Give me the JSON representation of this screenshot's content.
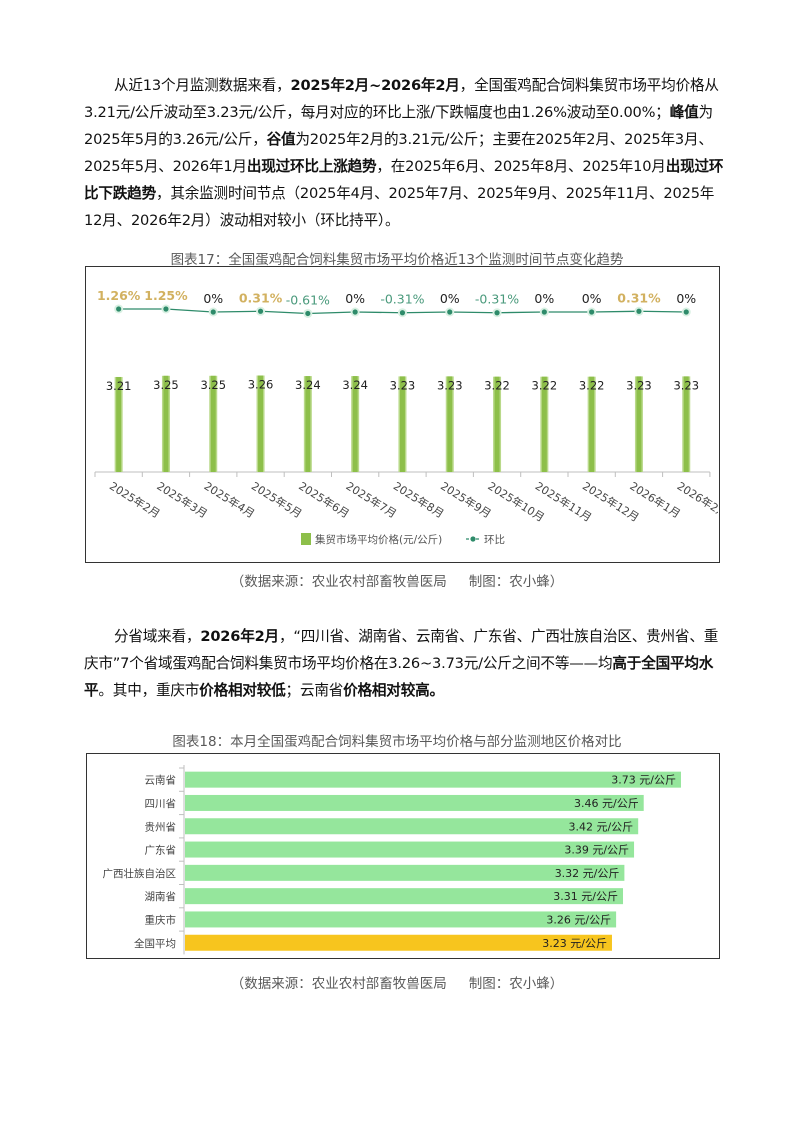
{
  "paragraph1": [
    {
      "t": "从近13个月监测数据来看，",
      "b": false
    },
    {
      "t": "2025年2月~2026年2月",
      "b": true
    },
    {
      "t": "，全国蛋鸡配合饲料集贸市场平均价格从3.21元/公斤波动至3.23元/公斤，每月对应的环比上涨/下跌幅度也由1.26%波动至0.00%；",
      "b": false
    },
    {
      "t": "峰值",
      "b": true
    },
    {
      "t": "为2025年5月的3.26元/公斤，",
      "b": false
    },
    {
      "t": "谷值",
      "b": true
    },
    {
      "t": "为2025年2月的3.21元/公斤；主要在2025年2月、2025年3月、2025年5月、2026年1月",
      "b": false
    },
    {
      "t": "出现过环比上涨趋势",
      "b": true
    },
    {
      "t": "，在2025年6月、2025年8月、2025年10月",
      "b": false
    },
    {
      "t": "出现过环比下跌趋势",
      "b": true
    },
    {
      "t": "，其余监测时间节点（2025年4月、2025年7月、2025年9月、2025年11月、2025年12月、2026年2月）波动相对较小（环比持平）。",
      "b": false
    }
  ],
  "paragraph2": [
    {
      "t": "分省域来看，",
      "b": false
    },
    {
      "t": "2026年2月",
      "b": true
    },
    {
      "t": "，“四川省、湖南省、云南省、广东省、广西壮族自治区、贵州省、重庆市”7个省域蛋鸡配合饲料集贸市场平均价格在3.26~3.73元/公斤之间不等——均",
      "b": false
    },
    {
      "t": "高于全国平均水平",
      "b": true
    },
    {
      "t": "。其中，重庆市",
      "b": false
    },
    {
      "t": "价格相对较低",
      "b": true
    },
    {
      "t": "；云南省",
      "b": false
    },
    {
      "t": "价格相对较高。",
      "b": true
    }
  ],
  "source": {
    "data_source": "（数据来源：农业农村部畜牧兽医局",
    "made_by": "制图：农小蜂）"
  },
  "chart_data": [
    {
      "type": "bar+line",
      "title": "图表17：全国蛋鸡配合饲料集贸市场平均价格近13个监测时间节点变化趋势",
      "categories": [
        "2025年2月",
        "2025年3月",
        "2025年4月",
        "2025年5月",
        "2025年6月",
        "2025年7月",
        "2025年8月",
        "2025年9月",
        "2025年10月",
        "2025年11月",
        "2025年12月",
        "2026年1月",
        "2026年2月"
      ],
      "series": [
        {
          "name": "集贸市场平均价格(元/公斤)",
          "type": "bar",
          "values": [
            3.21,
            3.25,
            3.25,
            3.26,
            3.24,
            3.24,
            3.23,
            3.23,
            3.22,
            3.22,
            3.22,
            3.23,
            3.23
          ],
          "color": "#8dbf4a"
        },
        {
          "name": "环比",
          "type": "line",
          "values": [
            1.26,
            1.25,
            0,
            0.31,
            -0.61,
            0,
            -0.31,
            0,
            -0.31,
            0,
            0,
            0.31,
            0
          ],
          "labels": [
            "1.26%",
            "1.25%",
            "0%",
            "0.31%",
            "-0.61%",
            "0%",
            "-0.31%",
            "0%",
            "-0.31%",
            "0%",
            "0%",
            "0.31%",
            "0%"
          ],
          "color": "#2e8b6a"
        }
      ],
      "legend": "bottom",
      "colors": {
        "positive": "#d2b160",
        "negative": "#4a9a7c",
        "zero": "#222222"
      }
    },
    {
      "type": "bar",
      "orientation": "horizontal",
      "title": "图表18：本月全国蛋鸡配合饲料集贸市场平均价格与部分监测地区价格对比",
      "categories": [
        "云南省",
        "四川省",
        "贵州省",
        "广东省",
        "广西壮族自治区",
        "湖南省",
        "重庆市",
        "全国平均"
      ],
      "values": [
        3.73,
        3.46,
        3.42,
        3.39,
        3.32,
        3.31,
        3.26,
        3.23
      ],
      "labels": [
        "3.73 元/公斤",
        "3.46 元/公斤",
        "3.42 元/公斤",
        "3.39 元/公斤",
        "3.32 元/公斤",
        "3.31 元/公斤",
        "3.26 元/公斤",
        "3.23 元/公斤"
      ],
      "unit": "元/公斤",
      "colors": {
        "province": "#95e69c",
        "national": "#f7c51e"
      }
    }
  ]
}
